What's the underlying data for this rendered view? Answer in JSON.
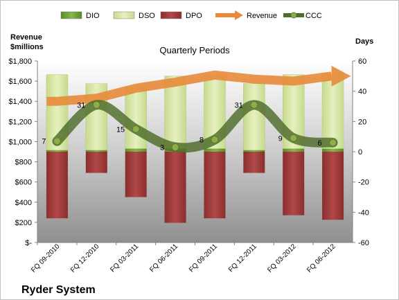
{
  "chart_data": {
    "type": "bar",
    "title": "Quarterly Periods",
    "company": "Ryder System",
    "left_axis_title": [
      "Revenue",
      "$millions"
    ],
    "right_axis_title": "Days",
    "legend_position": "top",
    "categories": [
      "FQ 09-2010",
      "FQ 12-2010",
      "FQ 03-2011",
      "FQ 06-2011",
      "FQ 09-2011",
      "FQ 12-2011",
      "FQ 03-2012",
      "FQ 06-2012"
    ],
    "left_axis": {
      "ylim": [
        0,
        1800
      ],
      "ticks": [
        "$-",
        "$200",
        "$400",
        "$600",
        "$800",
        "$1,000",
        "$1,200",
        "$1,400",
        "$1,600",
        "$1,800"
      ]
    },
    "right_axis": {
      "ylim": [
        -60,
        60
      ],
      "ticks": [
        "-60",
        "-40",
        "-20",
        "0",
        "20",
        "40",
        "60"
      ]
    },
    "series": [
      {
        "name": "DIO",
        "axis": "right",
        "kind": "stacked-bar",
        "color": "#6b9b2e",
        "values": [
          1,
          1,
          2,
          2,
          2,
          1,
          2,
          2
        ]
      },
      {
        "name": "DSO",
        "axis": "right",
        "kind": "stacked-bar",
        "color": "#d7e8a4",
        "values": [
          50,
          44,
          41,
          48,
          48,
          44,
          49,
          50
        ]
      },
      {
        "name": "DPO",
        "axis": "right",
        "kind": "negative-bar",
        "color": "#9b3b3b",
        "values": [
          -44,
          -14,
          -30,
          -47,
          -44,
          -14,
          -42,
          -45
        ]
      },
      {
        "name": "Revenue",
        "axis": "left",
        "kind": "arrow-line",
        "color": "#e88a3a",
        "values": [
          1400,
          1430,
          1530,
          1590,
          1660,
          1620,
          1600,
          1650
        ]
      },
      {
        "name": "CCC",
        "axis": "right",
        "kind": "line",
        "color": "#4e6b2a",
        "values": [
          7,
          31,
          15,
          3,
          8,
          31,
          9,
          6
        ],
        "labels": [
          "7",
          "31",
          "15",
          "3",
          "8",
          "31",
          "9",
          "6"
        ]
      }
    ],
    "grid": false
  }
}
